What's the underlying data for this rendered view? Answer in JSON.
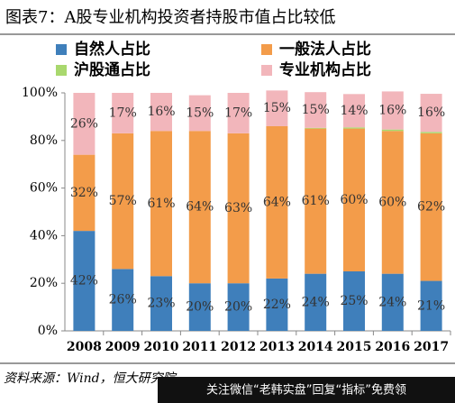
{
  "chart_data": {
    "type": "stacked_bar",
    "title": "图表7：A股专业机构投资者持股市值占比较低",
    "categories": [
      "2008",
      "2009",
      "2010",
      "2011",
      "2012",
      "2013",
      "2014",
      "2015",
      "2016",
      "2017"
    ],
    "series": [
      {
        "name": "自然人占比",
        "color": "#3f7fbb",
        "values": [
          42,
          26,
          23,
          20,
          20,
          22,
          24,
          25,
          24,
          21
        ],
        "value_labels": [
          "42%",
          "26%",
          "23%",
          "20%",
          "20%",
          "22%",
          "24%",
          "25%",
          "24%",
          "21%"
        ]
      },
      {
        "name": "一般法人占比",
        "color": "#f39c4a",
        "values": [
          32,
          57,
          61,
          64,
          63,
          64,
          61,
          60,
          60,
          62
        ],
        "value_labels": [
          "32%",
          "57%",
          "61%",
          "64%",
          "63%",
          "64%",
          "61%",
          "60%",
          "60%",
          "62%"
        ]
      },
      {
        "name": "沪股通占比",
        "color": "#a9d86e",
        "values": [
          0,
          0,
          0,
          0,
          0,
          0,
          0.3,
          0.5,
          0.6,
          0.6
        ]
      },
      {
        "name": "专业机构占比",
        "color": "#f2b6bb",
        "values": [
          26,
          17,
          16,
          15,
          17,
          15,
          15,
          14,
          16,
          16
        ],
        "value_labels": [
          "26%",
          "17%",
          "16%",
          "15%",
          "17%",
          "15%",
          "15%",
          "14%",
          "16%",
          "16%"
        ]
      }
    ],
    "ylim": [
      0,
      100
    ],
    "yticks": [
      {
        "value": 0,
        "label": "0%"
      },
      {
        "value": 20,
        "label": "20%"
      },
      {
        "value": 40,
        "label": "40%"
      },
      {
        "value": 60,
        "label": "60%"
      },
      {
        "value": 80,
        "label": "80%"
      },
      {
        "value": 100,
        "label": "100%"
      }
    ],
    "source": "资料来源：Wind，恒大研究院",
    "watermark": "关注微信“老韩实盘”回复“指标”免费领"
  }
}
